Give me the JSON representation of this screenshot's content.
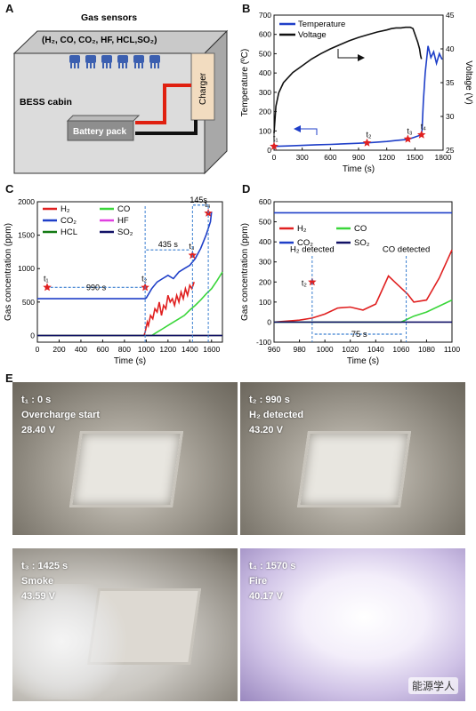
{
  "figure": {
    "panel_labels": {
      "A": "A",
      "B": "B",
      "C": "C",
      "D": "D",
      "E": "E"
    }
  },
  "panel_a": {
    "sensors_title": "Gas sensors",
    "sensors_list": "(H₂, CO, CO₂, HF, HCL,SO₂)",
    "cabin_label": "BESS cabin",
    "battery_label": "Battery pack",
    "charger_label": "Charger"
  },
  "chart_data": [
    {
      "panel": "B",
      "type": "line",
      "xlabel": "Time (s)",
      "ylabel": "Temperature (ºC)",
      "y2label": "Voltage (V)",
      "xlim": [
        0,
        1800
      ],
      "ylim": [
        0,
        700
      ],
      "y2lim": [
        25,
        45
      ],
      "xticks": [
        "0",
        "300",
        "600",
        "900",
        "1200",
        "1500",
        "1800"
      ],
      "yticks": [
        "0",
        "100",
        "200",
        "300",
        "400",
        "500",
        "600",
        "700"
      ],
      "y2ticks": [
        "25",
        "30",
        "35",
        "40",
        "45"
      ],
      "legend": [
        "Temperature",
        "Voltage"
      ],
      "legend_position": "top-left",
      "series": [
        {
          "name": "Temperature",
          "color": "#1f3fc8",
          "axis": "left",
          "x": [
            0,
            150,
            300,
            450,
            600,
            750,
            900,
            1050,
            1200,
            1300,
            1400,
            1450,
            1500,
            1540,
            1560,
            1575,
            1590,
            1610,
            1640,
            1670,
            1700,
            1730,
            1760,
            1790
          ],
          "y": [
            20,
            22,
            25,
            28,
            30,
            33,
            36,
            40,
            45,
            50,
            55,
            60,
            68,
            75,
            80,
            100,
            250,
            400,
            540,
            480,
            510,
            450,
            500,
            470
          ]
        },
        {
          "name": "Voltage",
          "color": "#111111",
          "axis": "right",
          "x": [
            0,
            20,
            50,
            100,
            200,
            300,
            400,
            500,
            600,
            700,
            800,
            900,
            1000,
            1100,
            1200,
            1250,
            1300,
            1350,
            1400,
            1450,
            1480,
            1500,
            1530,
            1550,
            1560,
            1570
          ],
          "y": [
            27.5,
            31.5,
            33.5,
            35.0,
            36.5,
            37.5,
            38.5,
            39.3,
            40.0,
            40.6,
            41.2,
            41.7,
            42.1,
            42.5,
            42.8,
            43.0,
            43.1,
            43.1,
            43.2,
            43.2,
            43.0,
            42.2,
            41.0,
            40.0,
            39.0,
            38.5
          ]
        }
      ],
      "markers": [
        {
          "label": "t₁",
          "x": 0,
          "y": 20
        },
        {
          "label": "t₂",
          "x": 990,
          "y": 38
        },
        {
          "label": "t₃",
          "x": 1425,
          "y": 58
        },
        {
          "label": "t₄",
          "x": 1570,
          "y": 80
        }
      ]
    },
    {
      "panel": "C",
      "type": "line",
      "xlabel": "Time (s)",
      "ylabel": "Gas concentration (ppm)",
      "xlim": [
        0,
        1700
      ],
      "ylim": [
        -100,
        2000
      ],
      "xticks": [
        "0",
        "200",
        "400",
        "600",
        "800",
        "1000",
        "1200",
        "1400",
        "1600"
      ],
      "yticks": [
        "0",
        "500",
        "1000",
        "1500",
        "2000"
      ],
      "legend": [
        "H₂",
        "CO",
        "CO₂",
        "HF",
        "HCL",
        "SO₂"
      ],
      "series": [
        {
          "name": "H₂",
          "color": "#e02020",
          "x": [
            0,
            980,
            990,
            1010,
            1020,
            1040,
            1060,
            1080,
            1100,
            1120,
            1140,
            1160,
            1180,
            1200,
            1220,
            1240,
            1260,
            1280,
            1300,
            1320,
            1340,
            1360,
            1380,
            1400,
            1420,
            1440
          ],
          "y": [
            0,
            0,
            50,
            200,
            150,
            300,
            250,
            400,
            350,
            500,
            300,
            450,
            400,
            600,
            500,
            550,
            450,
            600,
            500,
            650,
            550,
            700,
            600,
            750,
            700,
            800
          ]
        },
        {
          "name": "CO",
          "color": "#3ad63a",
          "x": [
            0,
            1050,
            1100,
            1150,
            1200,
            1250,
            1300,
            1350,
            1400,
            1450,
            1500,
            1550,
            1600,
            1650,
            1700
          ],
          "y": [
            0,
            0,
            50,
            100,
            150,
            200,
            250,
            300,
            380,
            450,
            530,
            620,
            700,
            820,
            950
          ]
        },
        {
          "name": "CO₂",
          "color": "#1f3fc8",
          "x": [
            0,
            990,
            1000,
            1050,
            1100,
            1150,
            1200,
            1250,
            1300,
            1350,
            1400,
            1450,
            1500,
            1550,
            1590,
            1600
          ],
          "y": [
            550,
            550,
            560,
            700,
            800,
            850,
            900,
            850,
            950,
            1000,
            1050,
            1150,
            1300,
            1500,
            1700,
            1850
          ]
        },
        {
          "name": "HF",
          "color": "#e040e0",
          "x": [
            0,
            1700
          ],
          "y": [
            0,
            0
          ]
        },
        {
          "name": "HCL",
          "color": "#137a13",
          "x": [
            0,
            1700
          ],
          "y": [
            0,
            0
          ]
        },
        {
          "name": "SO₂",
          "color": "#111166",
          "x": [
            0,
            1700
          ],
          "y": [
            0,
            0
          ]
        }
      ],
      "markers": [
        {
          "label": "t₁",
          "x": 90,
          "y": 720
        },
        {
          "label": "t₂",
          "x": 990,
          "y": 720
        },
        {
          "label": "t₃",
          "x": 1425,
          "y": 1200
        },
        {
          "label": "t₄",
          "x": 1570,
          "y": 1830
        }
      ],
      "annotations": [
        "990 s",
        "435 s",
        "145s"
      ]
    },
    {
      "panel": "D",
      "type": "line",
      "xlabel": "Time (s)",
      "ylabel": "Gas concentration (ppm)",
      "xlim": [
        960,
        1100
      ],
      "ylim": [
        -100,
        600
      ],
      "xticks": [
        "960",
        "980",
        "1000",
        "1020",
        "1040",
        "1060",
        "1080",
        "1100"
      ],
      "yticks": [
        "-100",
        "0",
        "100",
        "200",
        "300",
        "400",
        "500",
        "600"
      ],
      "legend": [
        "H₂",
        "CO",
        "CO₂",
        "SO₂"
      ],
      "series": [
        {
          "name": "H₂",
          "color": "#e02020",
          "x": [
            960,
            970,
            980,
            990,
            1000,
            1010,
            1020,
            1030,
            1040,
            1050,
            1055,
            1060,
            1065,
            1070,
            1080,
            1090,
            1100
          ],
          "y": [
            0,
            5,
            10,
            20,
            40,
            70,
            75,
            60,
            90,
            230,
            200,
            170,
            140,
            100,
            110,
            220,
            360
          ]
        },
        {
          "name": "CO",
          "color": "#3ad63a",
          "x": [
            960,
            1060,
            1070,
            1080,
            1090,
            1100
          ],
          "y": [
            0,
            0,
            30,
            50,
            80,
            110
          ]
        },
        {
          "name": "CO₂",
          "color": "#1f3fc8",
          "x": [
            960,
            1100
          ],
          "y": [
            545,
            545
          ]
        },
        {
          "name": "SO₂",
          "color": "#111166",
          "x": [
            960,
            1100
          ],
          "y": [
            0,
            0
          ]
        }
      ],
      "markers": [
        {
          "label": "t₂",
          "x": 990,
          "y": 200
        }
      ],
      "annotations": [
        "H₂ detected",
        "CO detected",
        "75 s"
      ]
    }
  ],
  "panel_e": {
    "photos": [
      {
        "line1": "t₁ : 0 s",
        "line2": "Overcharge start",
        "line3": "28.40 V"
      },
      {
        "line1": "t₂ : 990 s",
        "line2": "H₂ detected",
        "line3": "43.20 V"
      },
      {
        "line1": "t₃ : 1425 s",
        "line2": "Smoke",
        "line3": "43.59 V"
      },
      {
        "line1": "t₄ : 1570 s",
        "line2": "Fire",
        "line3": "40.17 V"
      }
    ],
    "watermark": "能源学人"
  }
}
